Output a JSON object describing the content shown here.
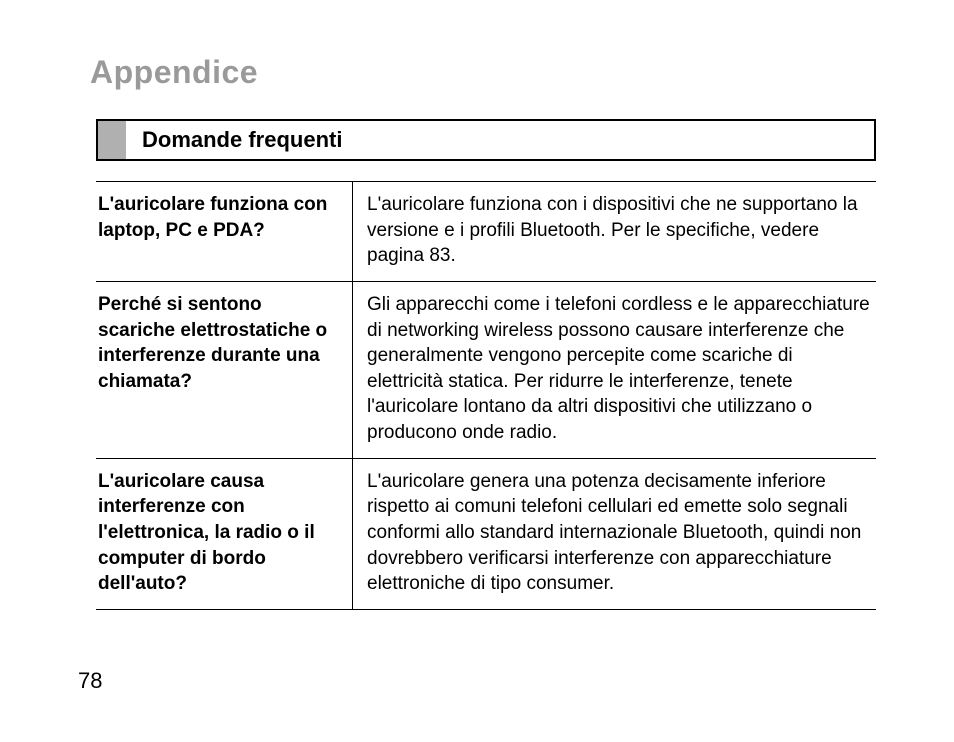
{
  "title": "Appendice",
  "section": "Domande frequenti",
  "page_number": "78",
  "colors": {
    "title": "#9a9a9a",
    "section_block": "#b0b0b0",
    "border": "#000000",
    "text": "#000000",
    "background": "#ffffff"
  },
  "typography": {
    "title_fontsize": 32,
    "section_fontsize": 22,
    "body_fontsize": 19,
    "font_family": "Arial"
  },
  "faq": [
    {
      "question": "L'auricolare funziona con laptop, PC e PDA?",
      "answer": "L'auricolare funziona con i dispositivi che ne supportano la versione e i profili Bluetooth. Per le specifiche, vedere pagina 83."
    },
    {
      "question": "Perché si sentono scariche elettrostatiche o interferenze durante una chiamata?",
      "answer": "Gli apparecchi come i telefoni cordless e le apparecchiature di networking wireless possono causare interferenze che generalmente vengono percepite come scariche di elettricità statica. Per ridurre le interferenze, tenete l'auricolare lontano da altri dispositivi che utilizzano o producono onde radio."
    },
    {
      "question": "L'auricolare causa interferenze con l'elettronica, la radio o il computer di bordo dell'auto?",
      "answer": "L'auricolare genera una potenza decisamente inferiore rispetto ai comuni telefoni cellulari ed emette solo segnali conformi allo standard internazionale Bluetooth, quindi non dovrebbero verificarsi interferenze con apparecchiature elettroniche di tipo consumer."
    }
  ]
}
